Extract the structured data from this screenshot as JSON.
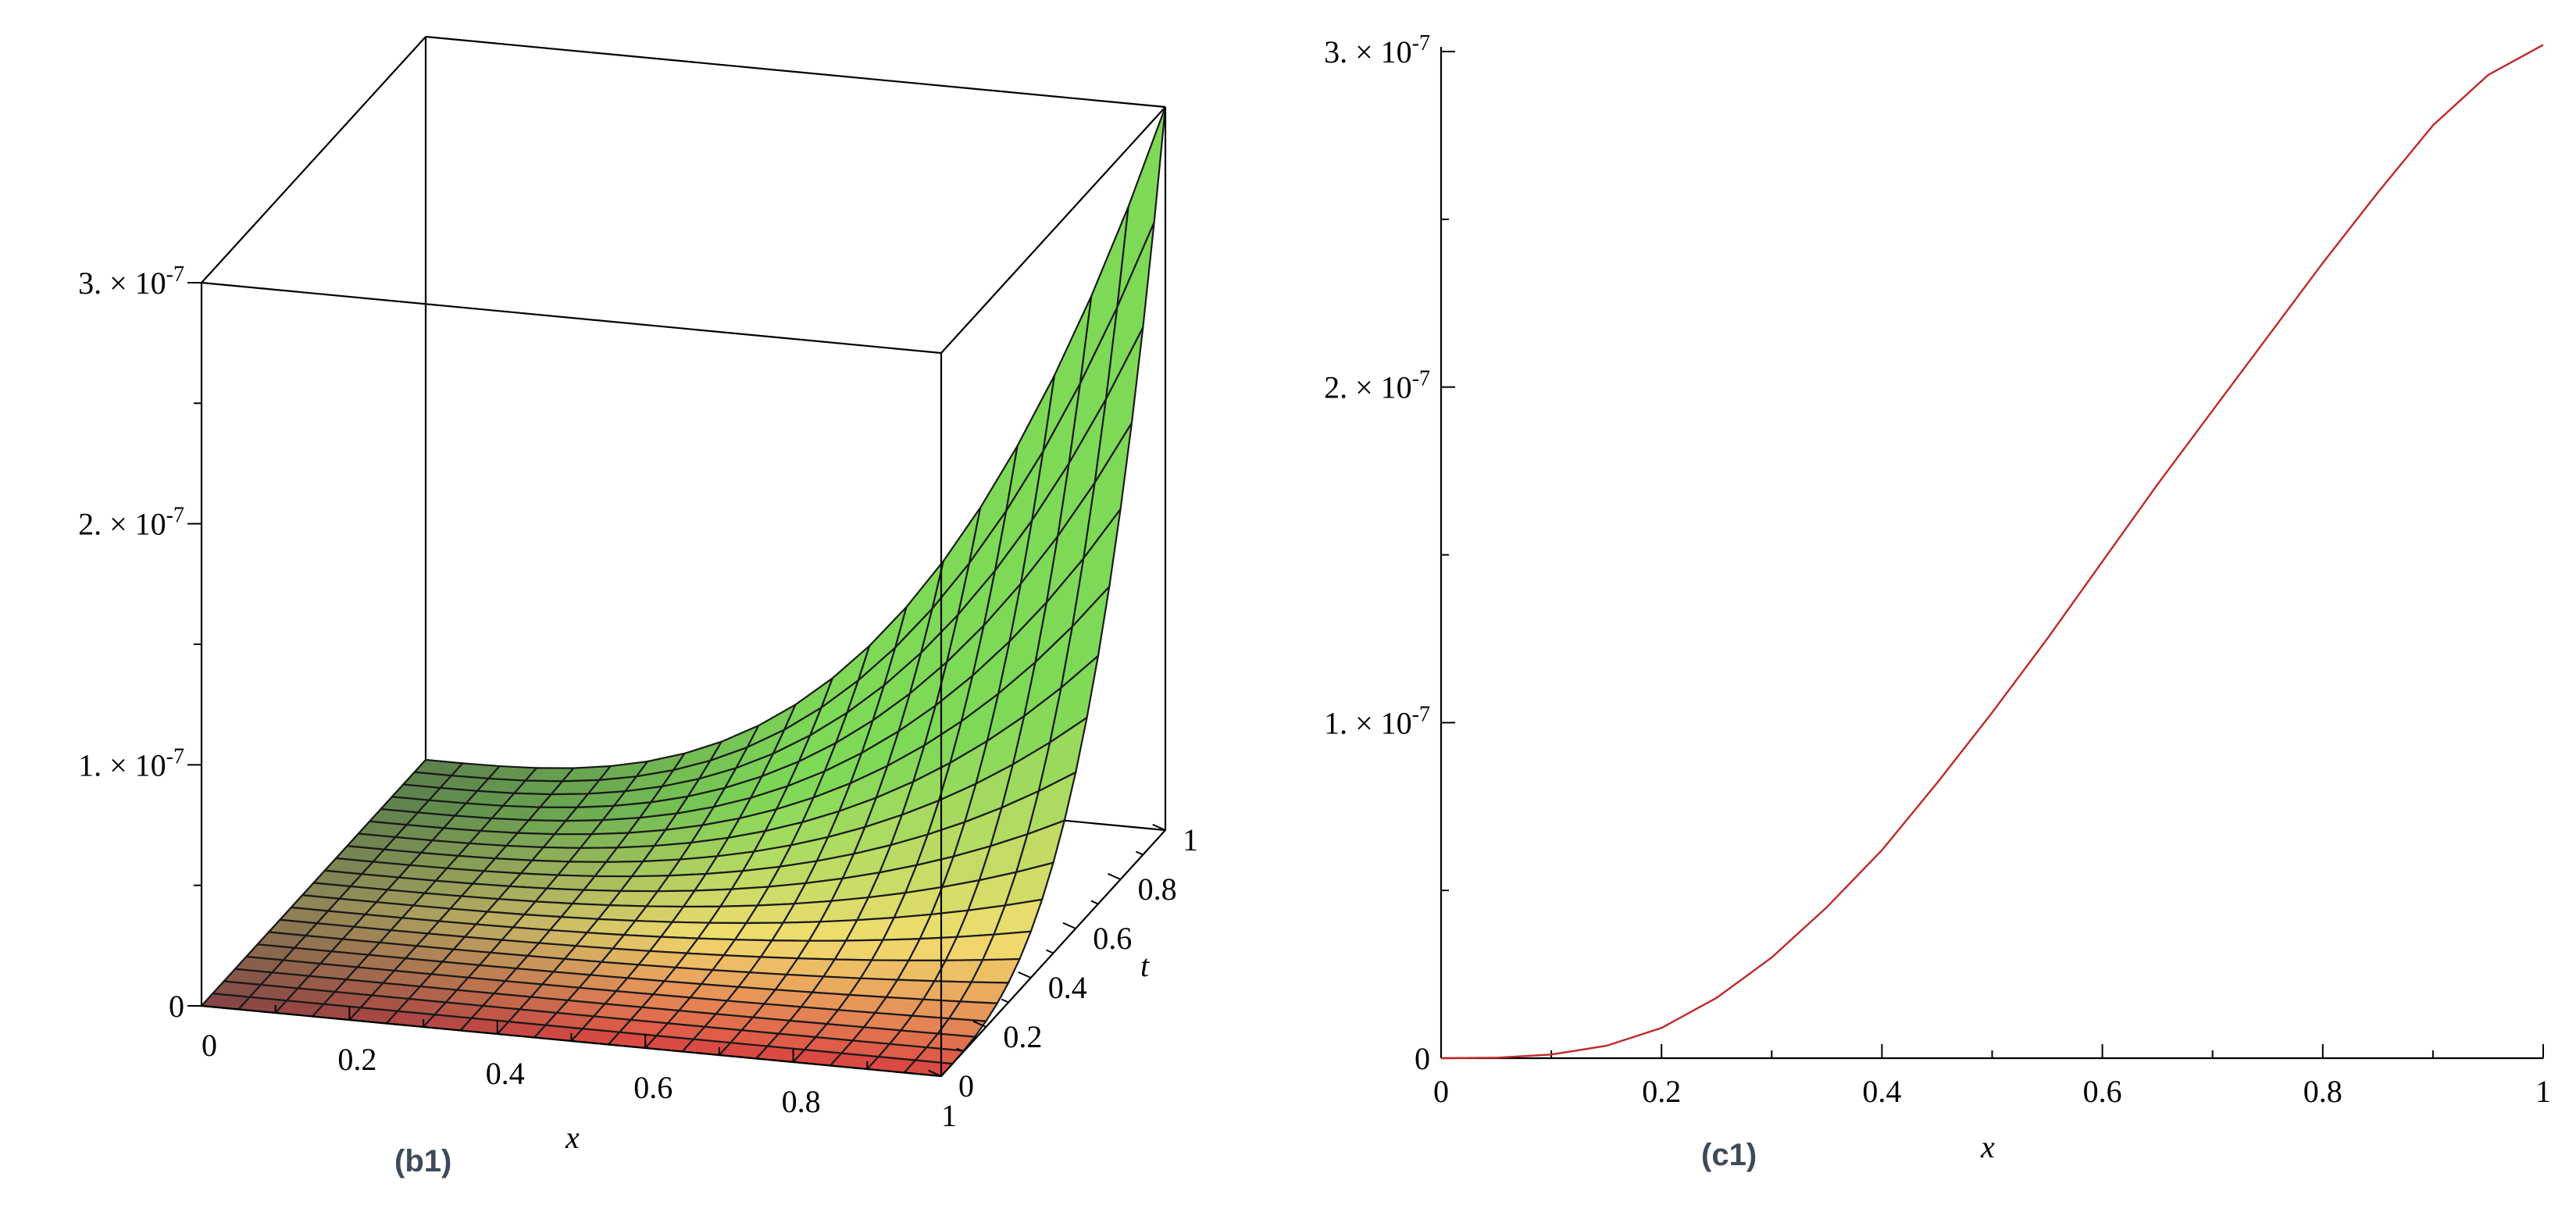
{
  "panels": {
    "b1": {
      "tag": "(b1)",
      "xlabel": "x",
      "tlabel": "t",
      "x_ticks": [
        "0",
        "0.2",
        "0.4",
        "0.6",
        "0.8",
        "1"
      ],
      "t_ticks": [
        "0",
        "0.2",
        "0.4",
        "0.6",
        "0.8",
        "1"
      ],
      "z_ticks": [
        {
          "mant": "0",
          "exp": ""
        },
        {
          "mant": "1. × 10",
          "exp": "-7"
        },
        {
          "mant": "2. × 10",
          "exp": "-7"
        },
        {
          "mant": "3. × 10",
          "exp": "-7"
        }
      ]
    },
    "c1": {
      "tag": "(c1)",
      "xlabel": "x",
      "x_ticks": [
        "0",
        "0.2",
        "0.4",
        "0.6",
        "0.8",
        "1"
      ],
      "y_ticks": [
        {
          "mant": "0",
          "exp": ""
        },
        {
          "mant": "1. × 10",
          "exp": "-7"
        },
        {
          "mant": "2. × 10",
          "exp": "-7"
        },
        {
          "mant": "3. × 10",
          "exp": "-7"
        }
      ]
    }
  },
  "chart_data": [
    {
      "type": "surface",
      "x": {
        "min": 0,
        "max": 1
      },
      "y": {
        "min": 0,
        "max": 1
      },
      "zlim": [
        0,
        3e-07
      ],
      "function": "z = 3e-7 * x^3 * t^3",
      "grid_lines": 21,
      "colors": {
        "low": "#d94040",
        "mid": "#f2dd6e",
        "high": "#7ed957",
        "dark": "#505050"
      }
    },
    {
      "type": "line",
      "x": [
        0,
        0.05,
        0.1,
        0.15,
        0.2,
        0.25,
        0.3,
        0.35,
        0.4,
        0.45,
        0.5,
        0.55,
        0.6,
        0.65,
        0.7,
        0.75,
        0.8,
        0.85,
        0.9,
        0.95,
        1
      ],
      "series": [
        {
          "values": [
            0,
            1.5e-10,
            1.1e-09,
            3.7e-09,
            9e-09,
            1.8e-08,
            3e-08,
            4.5e-08,
            6.2e-08,
            8.2e-08,
            1.03e-07,
            1.25e-07,
            1.48e-07,
            1.71e-07,
            1.93e-07,
            2.15e-07,
            2.37e-07,
            2.58e-07,
            2.78e-07,
            2.93e-07,
            3.02e-07
          ]
        }
      ],
      "xlim": [
        0,
        1
      ],
      "ylim": [
        0,
        3e-07
      ],
      "color": "#c0282a"
    }
  ]
}
